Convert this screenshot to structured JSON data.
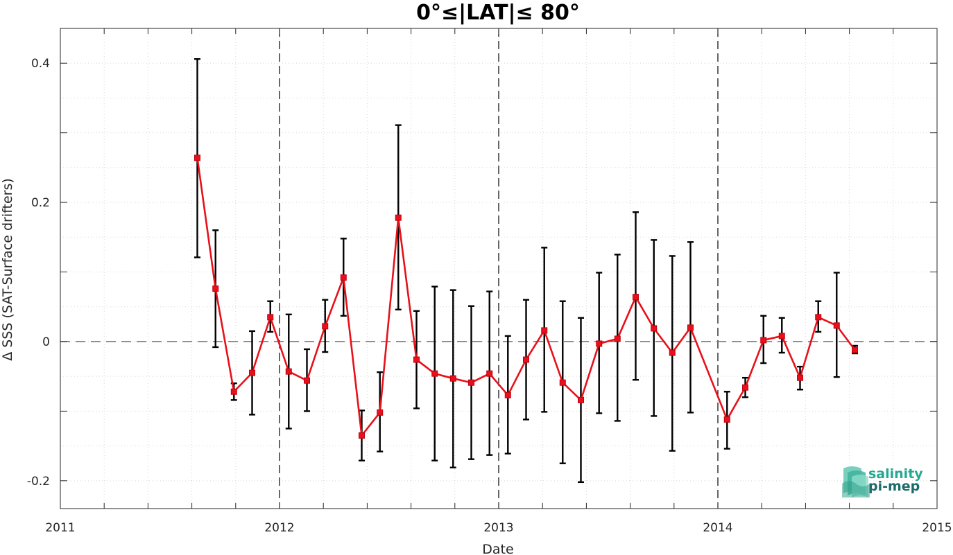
{
  "chart_data": {
    "type": "line",
    "title": "0°≤|LAT|≤ 80°",
    "xlabel": "Date",
    "ylabel": "Δ SSS (SAT-Surface drifters)",
    "xlim": [
      2011.0,
      2015.0
    ],
    "ylim": [
      -0.24,
      0.45
    ],
    "x_ticks": [
      2011,
      2012,
      2013,
      2014,
      2015
    ],
    "x_tick_labels": [
      "2011",
      "2012",
      "2013",
      "2014",
      "2015"
    ],
    "y_ticks": [
      -0.2,
      0,
      0.2,
      0.4
    ],
    "y_tick_labels": [
      "-0.2",
      "0",
      "0.2",
      "0.4"
    ],
    "grid": true,
    "zero_line": 0,
    "year_dividers": [
      2012,
      2013,
      2014
    ],
    "series": [
      {
        "color": "#e8101a",
        "marker": "square",
        "x": [
          2011.625,
          2011.708,
          2011.792,
          2011.875,
          2011.958,
          2012.042,
          2012.125,
          2012.208,
          2012.292,
          2012.375,
          2012.458,
          2012.542,
          2012.625,
          2012.708,
          2012.792,
          2012.875,
          2012.958,
          2013.042,
          2013.125,
          2013.208,
          2013.292,
          2013.375,
          2013.458,
          2013.542,
          2013.625,
          2013.708,
          2013.792,
          2013.875,
          2014.042,
          2014.125,
          2014.208,
          2014.292,
          2014.375,
          2014.458,
          2014.542,
          2014.625
        ],
        "y": [
          0.264,
          0.076,
          -0.072,
          -0.045,
          0.035,
          -0.043,
          -0.056,
          0.022,
          0.092,
          -0.135,
          -0.102,
          0.178,
          -0.026,
          -0.046,
          -0.053,
          -0.059,
          -0.046,
          -0.077,
          -0.026,
          0.016,
          -0.059,
          -0.084,
          -0.003,
          0.004,
          0.064,
          0.019,
          -0.016,
          0.02,
          -0.112,
          -0.066,
          0.002,
          0.008,
          -0.052,
          0.035,
          0.023,
          -0.012
        ],
        "y_low": [
          0.121,
          -0.008,
          -0.084,
          -0.105,
          0.014,
          -0.125,
          -0.1,
          -0.015,
          0.037,
          -0.171,
          -0.158,
          0.046,
          -0.096,
          -0.171,
          -0.181,
          -0.169,
          -0.163,
          -0.161,
          -0.112,
          -0.101,
          -0.175,
          -0.202,
          -0.103,
          -0.114,
          -0.055,
          -0.107,
          -0.157,
          -0.102,
          -0.154,
          -0.08,
          -0.031,
          -0.016,
          -0.069,
          0.014,
          -0.051,
          -0.017
        ],
        "y_high": [
          0.406,
          0.16,
          -0.06,
          0.015,
          0.058,
          0.039,
          -0.011,
          0.06,
          0.148,
          -0.099,
          -0.044,
          0.311,
          0.044,
          0.079,
          0.074,
          0.051,
          0.072,
          0.008,
          0.06,
          0.135,
          0.058,
          0.034,
          0.099,
          0.125,
          0.186,
          0.146,
          0.123,
          0.143,
          -0.072,
          -0.052,
          0.037,
          0.034,
          -0.036,
          0.058,
          0.099,
          -0.006
        ]
      }
    ]
  },
  "logo": {
    "line1": "salinity",
    "line2": "pi-mep",
    "color1": "#22a98f",
    "color2": "#1c6b6a"
  }
}
